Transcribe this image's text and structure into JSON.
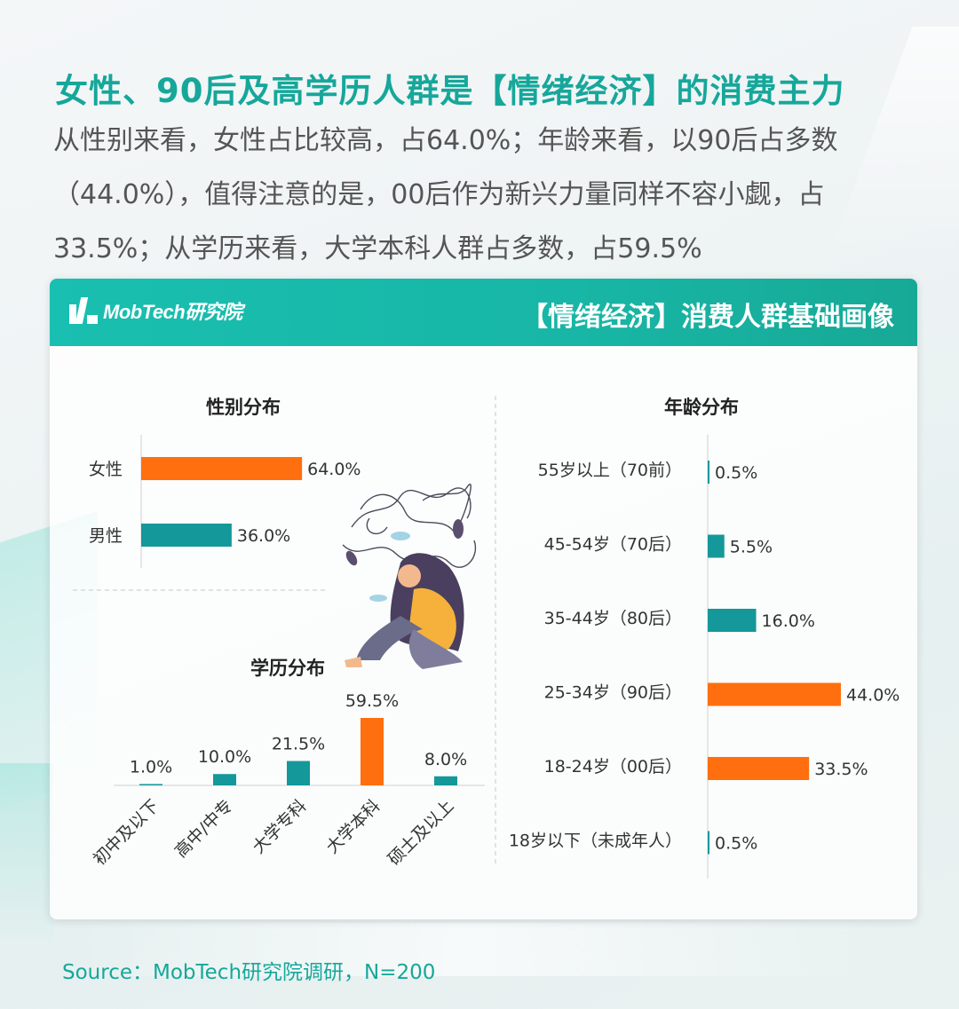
{
  "title": "女性、90后及高学历人群是【情绪经济】的消费主力",
  "description": "从性别来看，女性占比较高，占64.0%；年龄来看，以90后占多数（44.0%），值得注意的是，00后作为新兴力量同样不容小觑，占33.5%；从学历来看，大学本科人群占多数，占59.5%",
  "card": {
    "logo_text": "MobTech研究院",
    "header_title": "【情绪经济】消费人群基础画像"
  },
  "source": "Source：MobTech研究院调研，N=200",
  "colors": {
    "accent": "#16a79a",
    "teal_bar": "#14989a",
    "orange_bar": "#ff6f0f"
  },
  "chart_data": [
    {
      "type": "bar",
      "orientation": "horizontal",
      "title": "性别分布",
      "categories": [
        "女性",
        "男性"
      ],
      "values": [
        64.0,
        36.0
      ],
      "labels": [
        "64.0%",
        "36.0%"
      ],
      "highlight": [
        true,
        false
      ]
    },
    {
      "type": "bar",
      "orientation": "vertical",
      "title": "学历分布",
      "categories": [
        "初中及以下",
        "高中/中专",
        "大学专科",
        "大学本科",
        "硕士及以上"
      ],
      "values": [
        1.0,
        10.0,
        21.5,
        59.5,
        8.0
      ],
      "labels": [
        "1.0%",
        "10.0%",
        "21.5%",
        "59.5%",
        "8.0%"
      ],
      "highlight": [
        false,
        false,
        false,
        true,
        false
      ]
    },
    {
      "type": "bar",
      "orientation": "horizontal",
      "title": "年龄分布",
      "categories": [
        "55岁以上（70前）",
        "45-54岁（70后）",
        "35-44岁（80后）",
        "25-34岁（90后）",
        "18-24岁（00后）",
        "18岁以下（未成年人）"
      ],
      "values": [
        0.5,
        5.5,
        16.0,
        44.0,
        33.5,
        0.5
      ],
      "labels": [
        "0.5%",
        "5.5%",
        "16.0%",
        "44.0%",
        "33.5%",
        "0.5%"
      ],
      "highlight": [
        false,
        false,
        false,
        true,
        true,
        false
      ]
    }
  ]
}
